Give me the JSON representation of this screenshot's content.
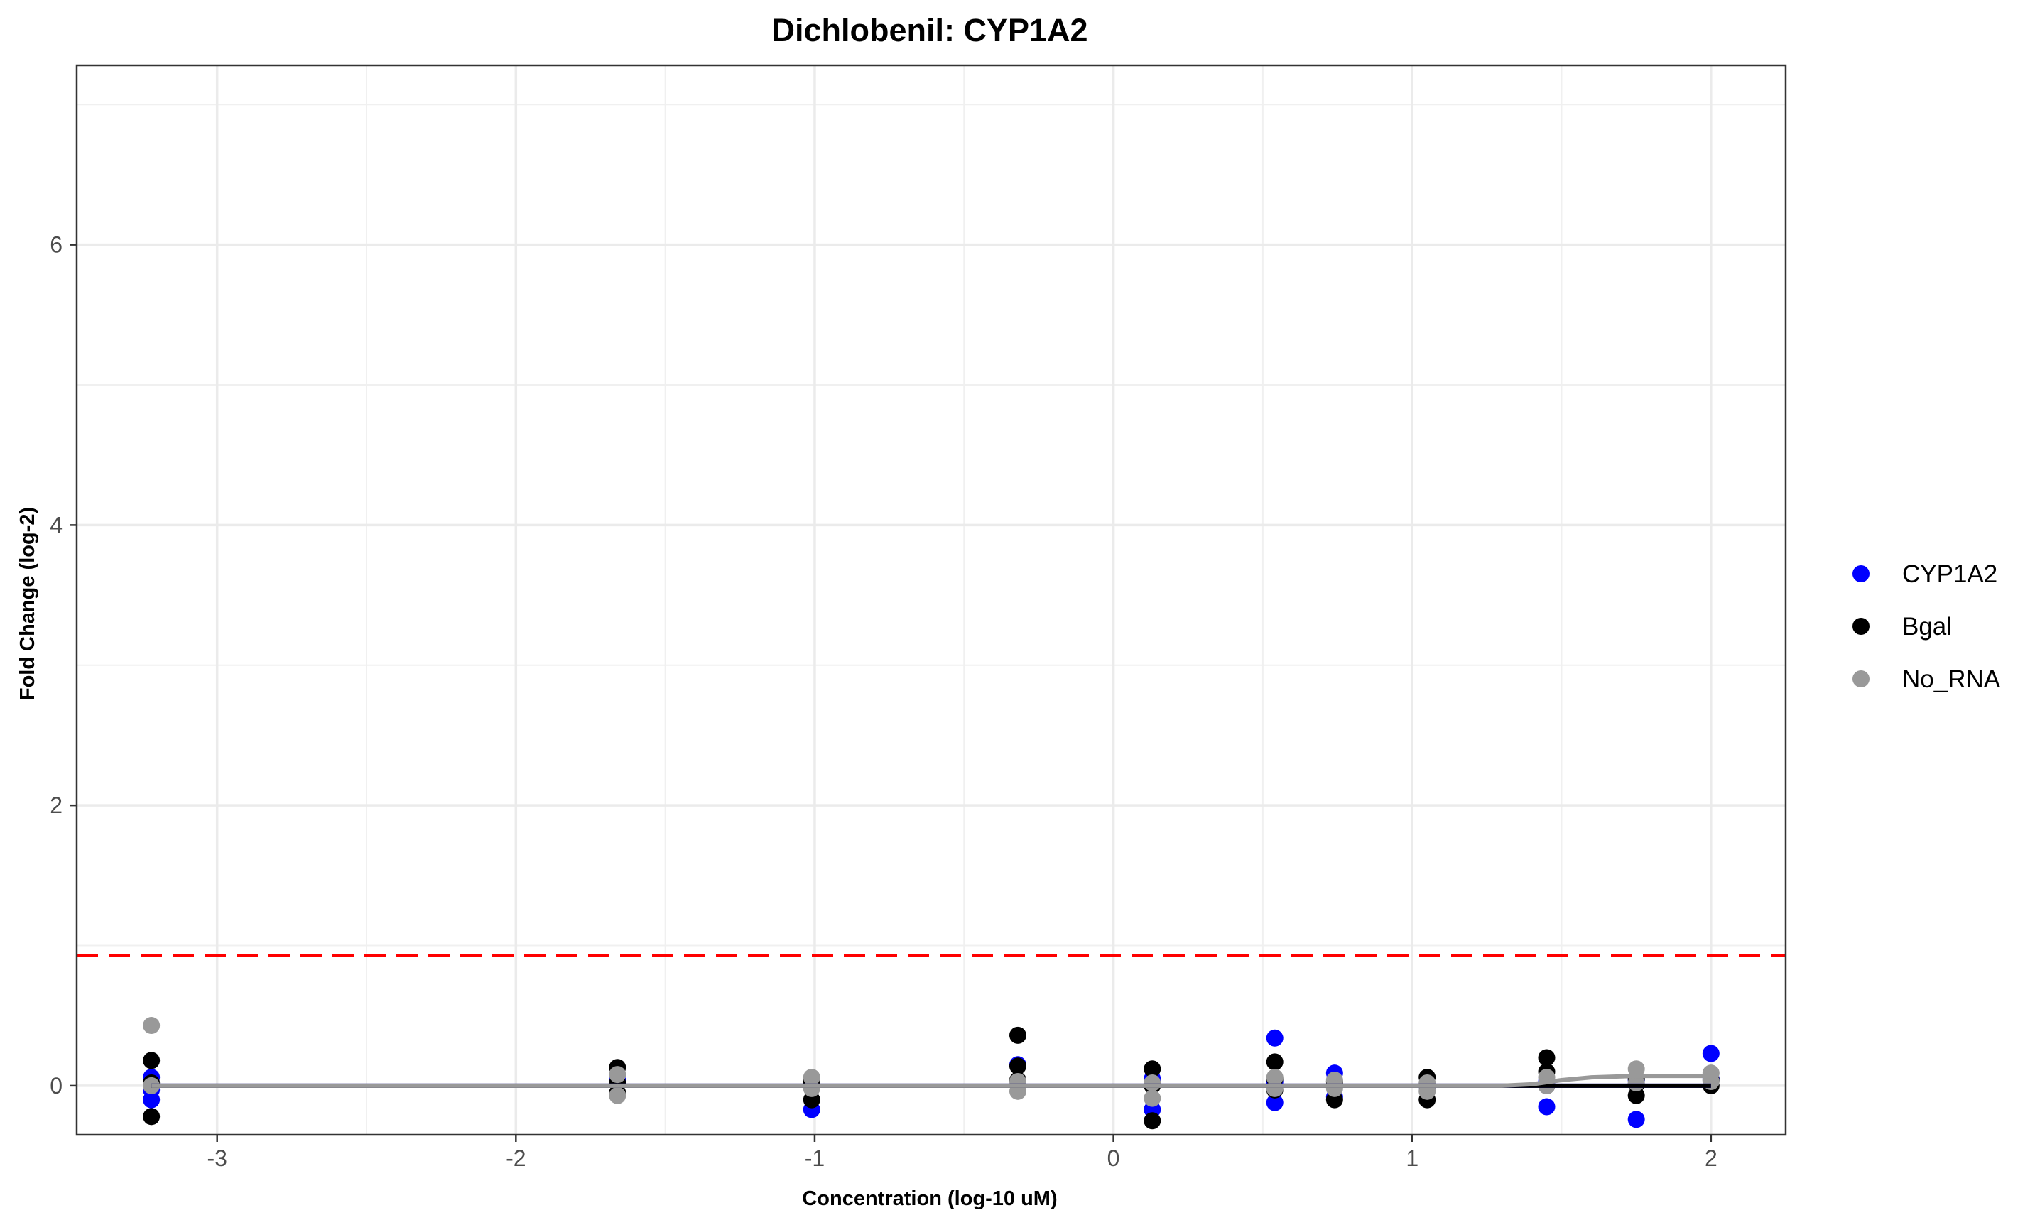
{
  "chart_data": {
    "type": "scatter",
    "title": "Dichlobenil: CYP1A2",
    "xlabel": "Concentration (log-10 uM)",
    "ylabel": "Fold Change (log-2)",
    "xlim": [
      -3.47,
      2.25
    ],
    "ylim": [
      -0.35,
      7.28
    ],
    "x_ticks": [
      -3,
      -2,
      -1,
      0,
      1,
      2
    ],
    "x_tick_labels": [
      "-3",
      "-2",
      "-1",
      "0",
      "1",
      "2"
    ],
    "y_ticks": [
      0,
      2,
      4,
      6
    ],
    "y_tick_labels": [
      "0",
      "2",
      "4",
      "6"
    ],
    "x_minor_ticks": [
      -2.5,
      -1.5,
      -0.5,
      0.5,
      1.5
    ],
    "y_minor_ticks": [
      1,
      3,
      5,
      7
    ],
    "grid": true,
    "legend_position": "right",
    "threshold_line": {
      "y": 0.93,
      "color": "#ff0000",
      "style": "dashed"
    },
    "series": [
      {
        "name": "CYP1A2",
        "color": "#0000ff",
        "x": [
          -3.22,
          -3.22,
          -3.22,
          -1.66,
          -1.01,
          -1.01,
          -0.32,
          0.13,
          0.13,
          0.54,
          0.54,
          0.54,
          0.74,
          0.74,
          1.05,
          1.45,
          1.45,
          1.75,
          1.75,
          2.0,
          2.0
        ],
        "y": [
          0.06,
          -0.1,
          -0.03,
          0.04,
          -0.17,
          0.0,
          0.15,
          -0.17,
          0.05,
          0.34,
          -0.12,
          0.03,
          0.09,
          -0.08,
          0.0,
          -0.15,
          0.03,
          -0.24,
          0.04,
          0.23,
          0.05
        ]
      },
      {
        "name": "Bgal",
        "color": "#000000",
        "x": [
          -3.22,
          -3.22,
          -3.22,
          -1.66,
          -1.66,
          -1.66,
          -1.01,
          -1.01,
          -0.32,
          -0.32,
          -0.32,
          0.13,
          0.13,
          0.13,
          0.54,
          0.54,
          0.54,
          0.74,
          0.74,
          1.05,
          1.05,
          1.05,
          1.45,
          1.45,
          1.45,
          1.75,
          1.75,
          1.75,
          2.0,
          2.0
        ],
        "y": [
          0.18,
          -0.22,
          0.02,
          0.13,
          0.02,
          -0.05,
          -0.1,
          0.03,
          0.36,
          0.14,
          0.04,
          0.12,
          -0.25,
          0.0,
          0.17,
          0.05,
          -0.03,
          -0.1,
          0.03,
          0.06,
          -0.1,
          0.0,
          0.2,
          0.1,
          0.0,
          0.05,
          -0.07,
          0.01,
          0.0,
          0.04
        ]
      },
      {
        "name": "No_RNA",
        "color": "#999999",
        "x": [
          -3.22,
          -3.22,
          -1.66,
          -1.66,
          -1.01,
          -1.01,
          -0.32,
          -0.32,
          0.13,
          0.13,
          0.54,
          0.54,
          0.74,
          0.74,
          1.05,
          1.05,
          1.45,
          1.45,
          1.75,
          1.75,
          2.0,
          2.0
        ],
        "y": [
          0.43,
          0.0,
          0.08,
          -0.07,
          0.06,
          -0.02,
          -0.04,
          0.03,
          0.02,
          -0.09,
          0.06,
          -0.02,
          0.04,
          -0.02,
          0.02,
          -0.04,
          0.06,
          0.0,
          0.12,
          0.02,
          0.09,
          0.03
        ]
      }
    ],
    "fit_lines": [
      {
        "name": "CYP1A2",
        "color": "#0000ff",
        "x": [
          -3.22,
          2.0
        ],
        "y": [
          0.0,
          0.0
        ]
      },
      {
        "name": "Bgal",
        "color": "#000000",
        "x": [
          -3.22,
          1.3,
          1.45,
          2.0
        ],
        "y": [
          0.0,
          0.0,
          0.0,
          0.0
        ]
      },
      {
        "name": "No_RNA",
        "color": "#999999",
        "x": [
          -3.22,
          1.3,
          1.4,
          1.5,
          1.6,
          1.75,
          2.0
        ],
        "y": [
          0.0,
          0.0,
          0.01,
          0.04,
          0.06,
          0.07,
          0.07
        ]
      }
    ]
  }
}
